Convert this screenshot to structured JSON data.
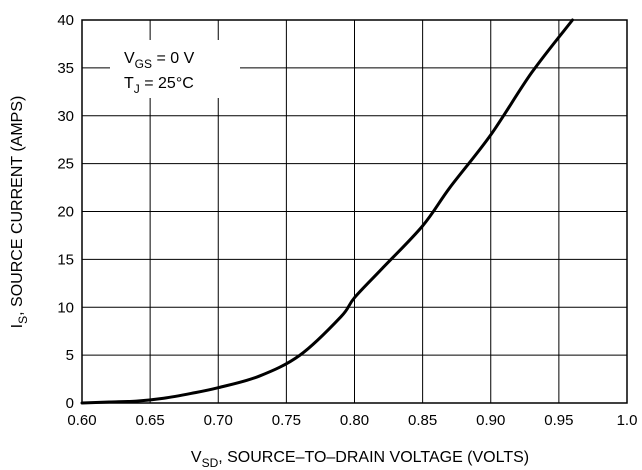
{
  "chart_data": {
    "type": "line",
    "xlabel_main": "V",
    "xlabel_sub": "SD",
    "xlabel_rest": ", SOURCE–TO–DRAIN VOLTAGE (VOLTS)",
    "ylabel_main": "I",
    "ylabel_sub": "S",
    "ylabel_rest": ", SOURCE CURRENT (AMPS)",
    "xlim": [
      0.6,
      1.0
    ],
    "ylim": [
      0,
      40
    ],
    "x_ticks": [
      "0.60",
      "0.65",
      "0.70",
      "0.75",
      "0.80",
      "0.85",
      "0.90",
      "0.95",
      "1.0"
    ],
    "y_ticks": [
      "0",
      "5",
      "10",
      "15",
      "20",
      "25",
      "30",
      "35",
      "40"
    ],
    "grid": true,
    "annotations": [
      {
        "main": "V",
        "sub": "GS",
        "rest": " = 0 V"
      },
      {
        "main": "T",
        "sub": "J",
        "rest": " = 25°C"
      }
    ],
    "series": [
      {
        "x": [
          0.6,
          0.62,
          0.64,
          0.66,
          0.68,
          0.7,
          0.73,
          0.76,
          0.79,
          0.8,
          0.82,
          0.85,
          0.87,
          0.9,
          0.93,
          0.96
        ],
        "y": [
          0,
          0.1,
          0.2,
          0.5,
          1.0,
          1.6,
          2.8,
          5.0,
          9.0,
          11.0,
          14.0,
          18.5,
          22.5,
          28.0,
          34.5,
          40.0
        ]
      }
    ]
  }
}
